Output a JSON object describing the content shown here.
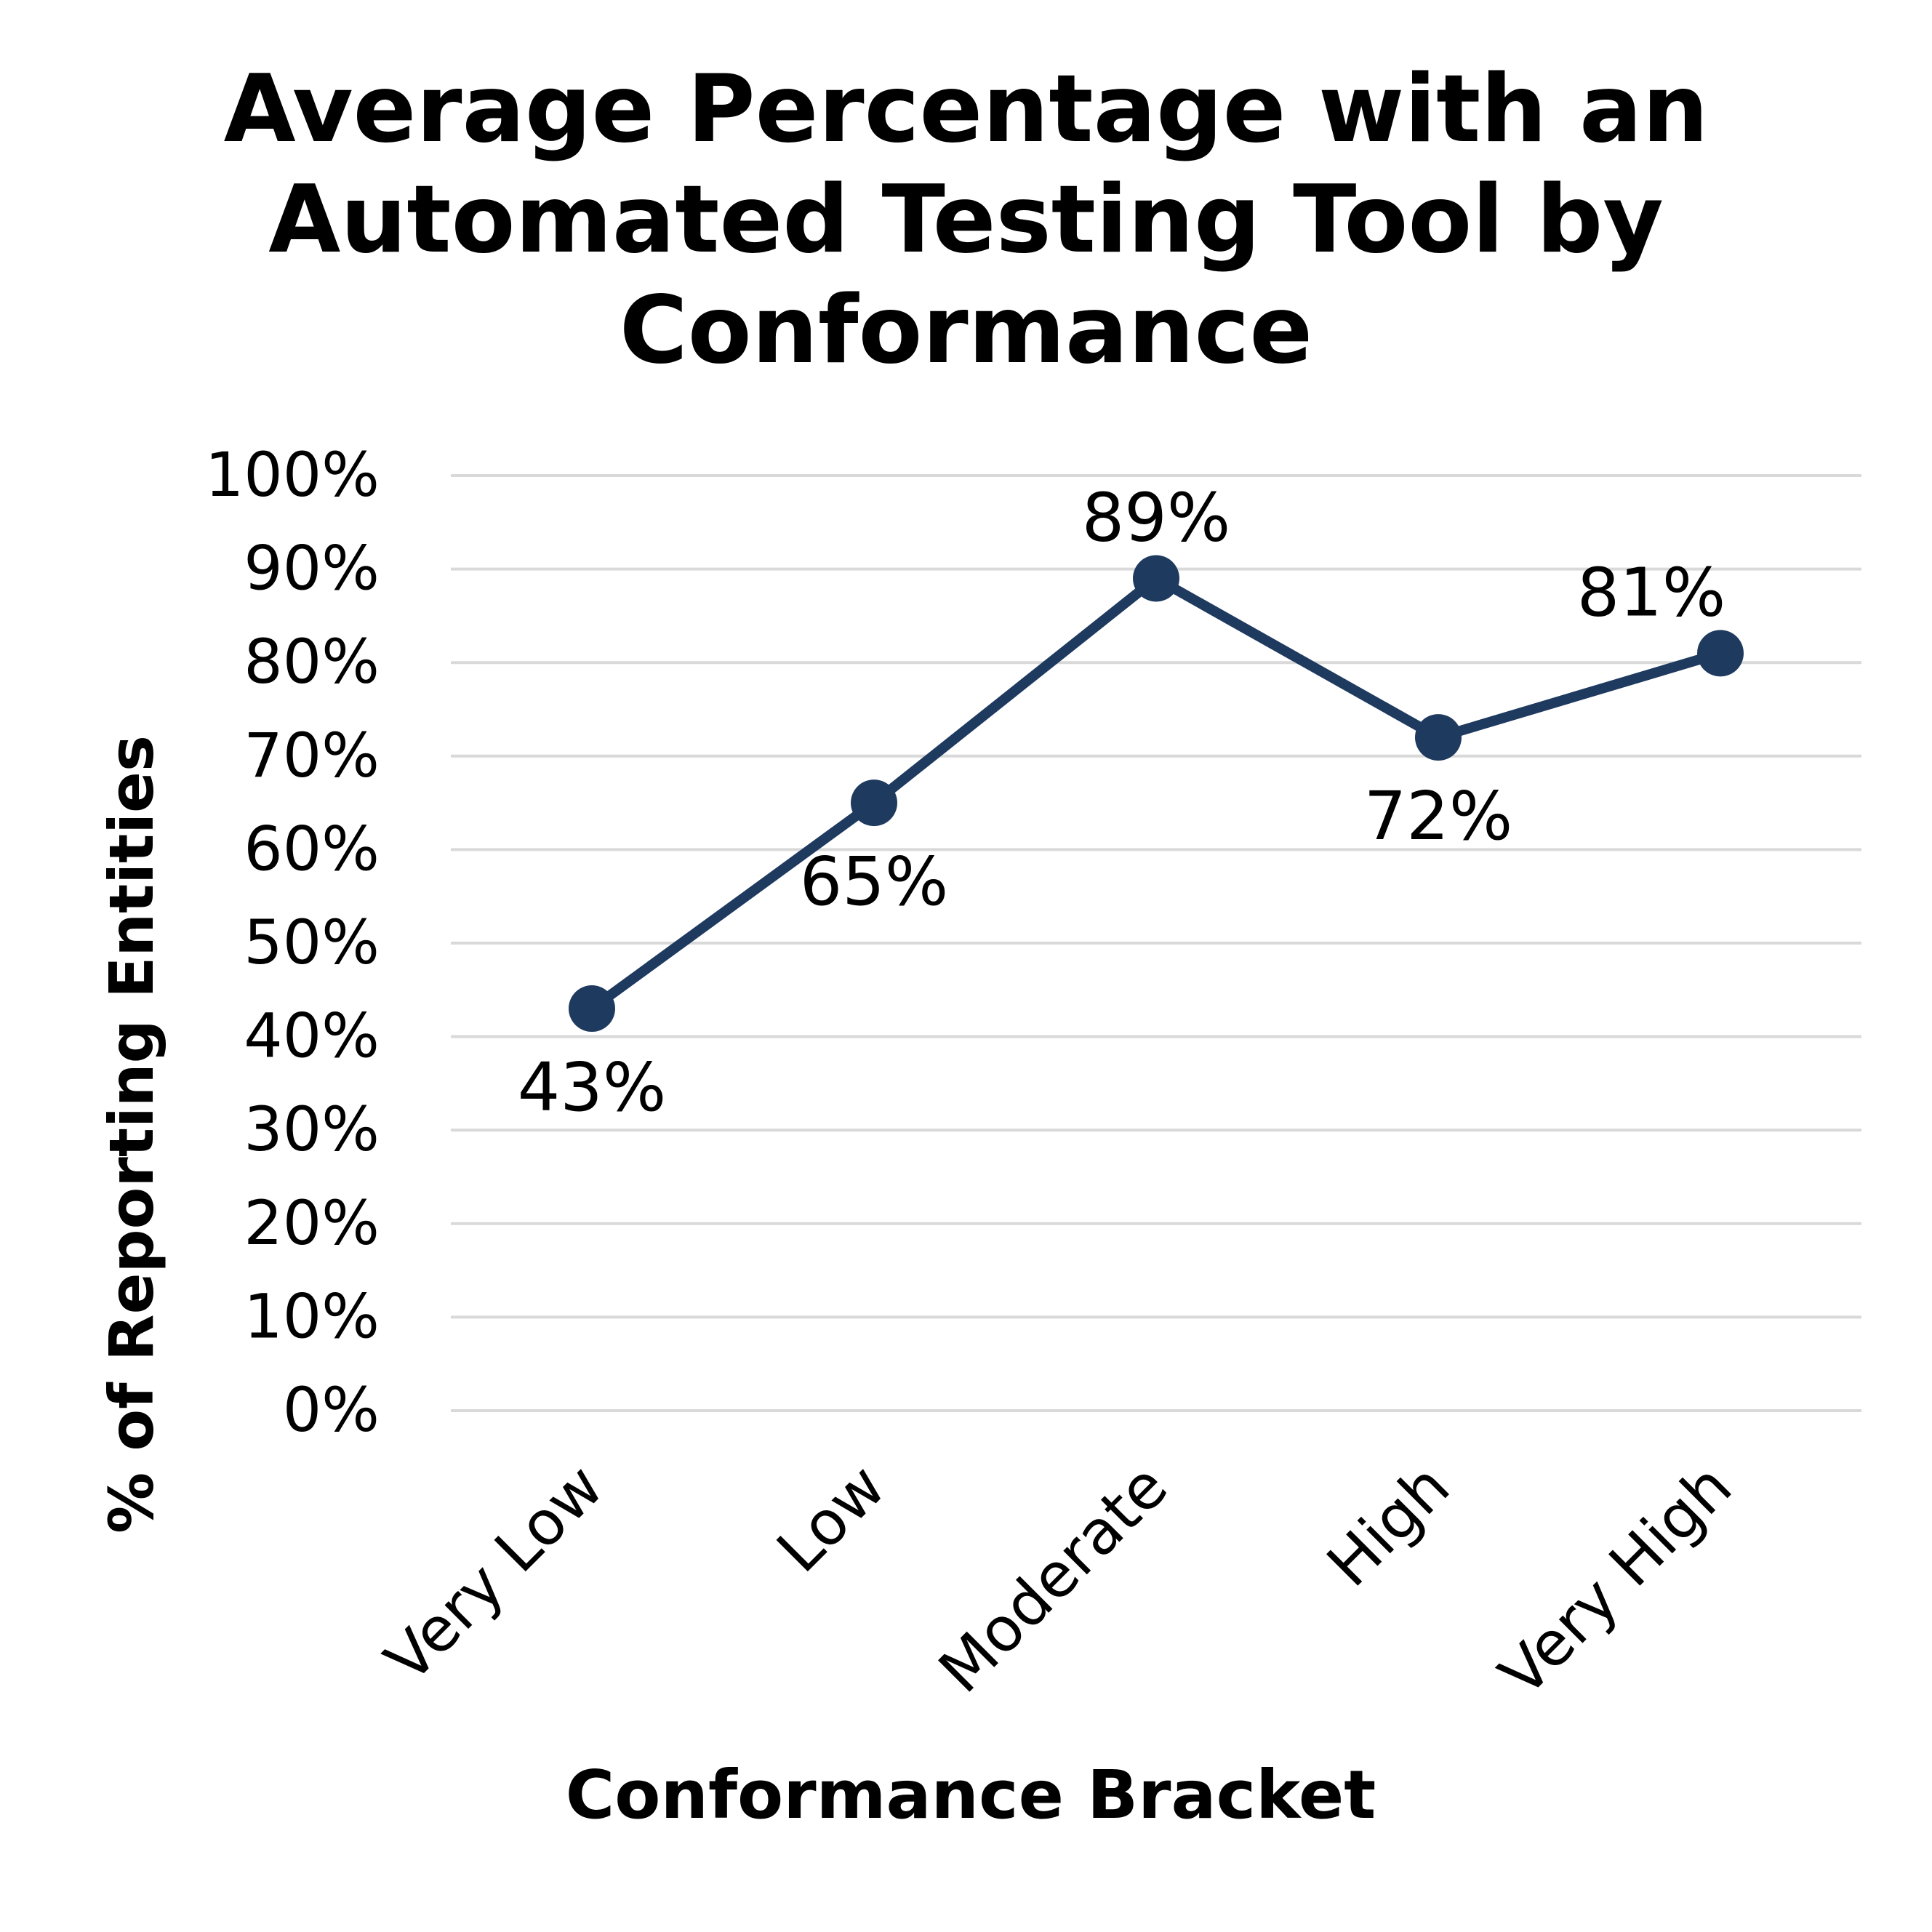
{
  "chart_data": {
    "type": "line",
    "title_lines": [
      "Average Percentage with an",
      "Automated Testing Tool by",
      "Conformance"
    ],
    "xlabel": "Conformance Bracket",
    "ylabel": "% of Reporting Entities",
    "categories": [
      "Very Low",
      "Low",
      "Moderate",
      "High",
      "Very High"
    ],
    "series": [
      {
        "values": [
          43,
          65,
          89,
          72,
          81
        ],
        "data_labels": [
          "43%",
          "65%",
          "89%",
          "72%",
          "81%"
        ],
        "color": "#1f3a5f"
      }
    ],
    "ylim": [
      0,
      100
    ],
    "yticks": [
      0,
      10,
      20,
      30,
      40,
      50,
      60,
      70,
      80,
      90,
      100
    ],
    "ytick_labels": [
      "0%",
      "10%",
      "20%",
      "30%",
      "40%",
      "50%",
      "60%",
      "70%",
      "80%",
      "90%",
      "100%"
    ],
    "grid": true,
    "legend": "none",
    "gridline_color": "#d9d9d9"
  }
}
